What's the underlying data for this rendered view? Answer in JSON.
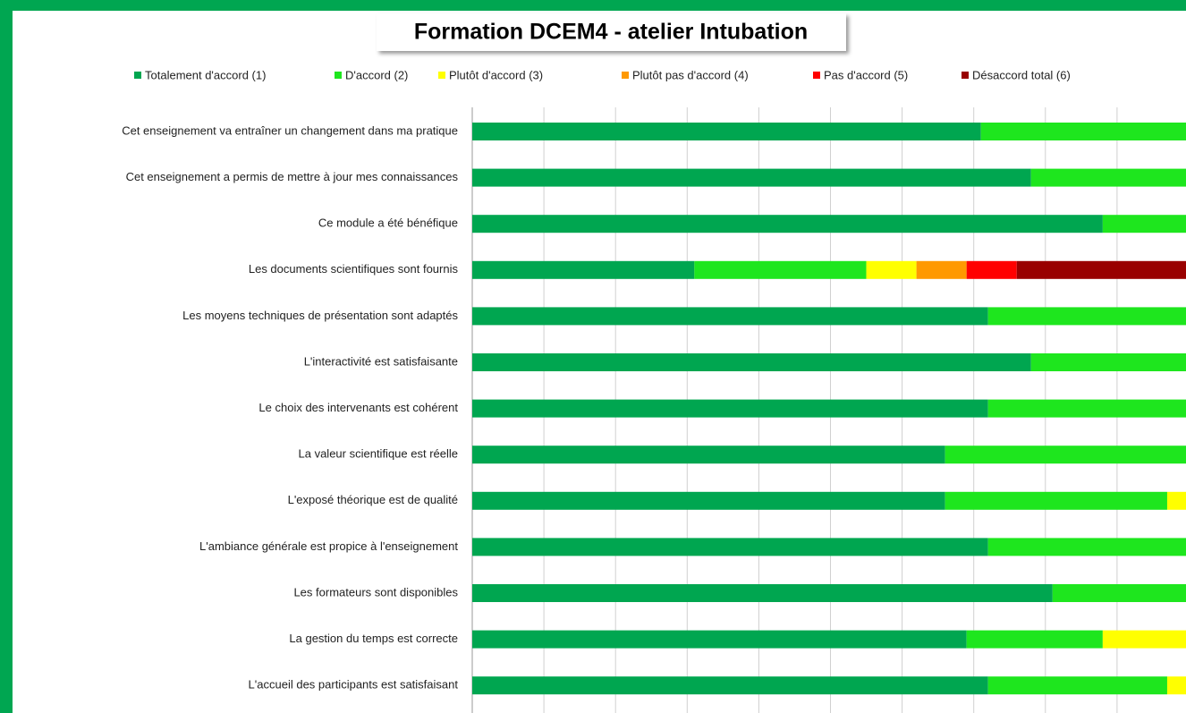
{
  "chart_data": {
    "type": "stacked-barh",
    "title": "Formation DCEM4 - atelier Intubation",
    "categories": [
      "Cet enseignement va entraîner un changement dans ma pratique",
      "Cet enseignement a permis de mettre à jour mes connaissances",
      "Ce module a été bénéfique",
      "Les documents scientifiques sont fournis",
      "Les moyens techniques de présentation sont adaptés",
      "L'interactivité est satisfaisante",
      "Le choix des intervenants est cohérent",
      "La valeur scientifique est réelle",
      "L'exposé théorique est de qualité",
      "L'ambiance générale est propice à l'enseignement",
      "Les formateurs sont disponibles",
      "La gestion du temps est correcte",
      "L'accueil des participants est satisfaisant"
    ],
    "series": [
      {
        "name": "Totalement d'accord (1)",
        "color": "#00a650",
        "values": [
          71,
          78,
          88,
          31,
          72,
          78,
          72,
          66,
          66,
          72,
          81,
          69,
          72
        ]
      },
      {
        "name": "D'accord (2)",
        "color": "#1ee61e",
        "values": [
          29,
          22,
          12,
          24,
          28,
          22,
          28,
          34,
          31,
          28,
          19,
          19,
          25
        ]
      },
      {
        "name": "Plutôt d'accord (3)",
        "color": "#ffff00",
        "values": [
          0,
          0,
          0,
          7,
          0,
          0,
          0,
          0,
          3,
          0,
          0,
          12,
          3
        ]
      },
      {
        "name": "Plutôt pas d'accord (4)",
        "color": "#ff9900",
        "values": [
          0,
          0,
          0,
          7,
          0,
          0,
          0,
          0,
          0,
          0,
          0,
          0,
          0
        ]
      },
      {
        "name": "Pas d'accord (5)",
        "color": "#ff0000",
        "values": [
          0,
          0,
          0,
          7,
          0,
          0,
          0,
          0,
          0,
          0,
          0,
          0,
          0
        ]
      },
      {
        "name": "Désaccord total (6)",
        "color": "#990000",
        "values": [
          0,
          0,
          0,
          24,
          0,
          0,
          0,
          0,
          0,
          0,
          0,
          0,
          0
        ]
      }
    ],
    "xlim": [
      0,
      100
    ],
    "xticks": [
      0,
      10,
      20,
      30,
      40,
      50,
      60,
      70,
      80,
      90,
      100
    ],
    "grid": true,
    "legend": "top"
  }
}
